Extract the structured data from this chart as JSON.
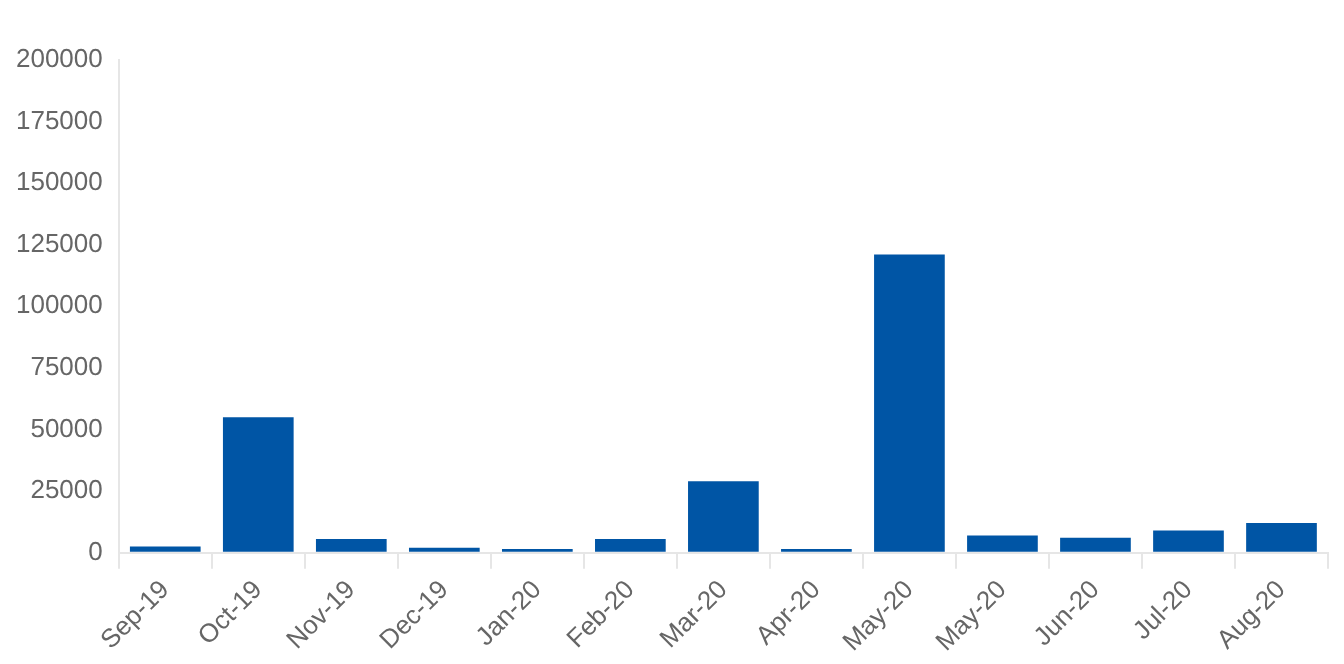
{
  "chart_data": {
    "type": "bar",
    "categories": [
      "Sep-19",
      "Oct-19",
      "Nov-19",
      "Dec-19",
      "Jan-20",
      "Feb-20",
      "Mar-20",
      "Apr-20",
      "May-20",
      "May-20",
      "Jun-20",
      "Jul-20",
      "Aug-20"
    ],
    "values": [
      2500,
      55000,
      5500,
      2000,
      1500,
      5500,
      29000,
      1500,
      121000,
      7000,
      6000,
      9000,
      12000
    ],
    "color": "#0055a5",
    "ylim": [
      0,
      200000
    ],
    "yticks": [
      0,
      25000,
      50000,
      75000,
      100000,
      125000,
      150000,
      175000,
      200000
    ],
    "grid": false,
    "legend": false
  }
}
